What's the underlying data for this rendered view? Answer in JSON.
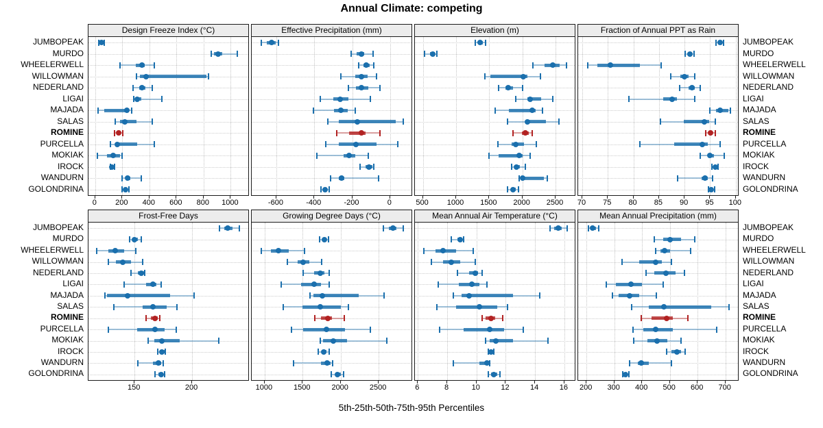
{
  "chart_data": {
    "type": "scatter",
    "subtype": "trellis-percentile-dotplot",
    "title": "Annual Climate: competing",
    "caption": "5th-25th-50th-75th-95th Percentiles",
    "percentiles": [
      5,
      25,
      50,
      75,
      95
    ],
    "legend_position": "none",
    "grid": "dotted",
    "sites": [
      "JUMBOPEAK",
      "MURDO",
      "WHEELERWELL",
      "WILLOWMAN",
      "NEDERLAND",
      "LIGAI",
      "MAJADA",
      "SALAS",
      "ROMINE",
      "PURCELLA",
      "MOKIAK",
      "IROCK",
      "WANDURN",
      "GOLONDRINA"
    ],
    "highlight_site": "ROMINE",
    "colors": {
      "default": "#1a6fad",
      "highlight": "#b22222"
    },
    "panels": [
      {
        "title": "Design Freeze Index (°C)",
        "xlim": [
          -50,
          1140
        ],
        "ticks": [
          0,
          200,
          400,
          600,
          800,
          1000
        ],
        "values": [
          [
            25,
            38,
            45,
            55,
            65
          ],
          [
            855,
            875,
            905,
            935,
            1050
          ],
          [
            185,
            300,
            345,
            365,
            435
          ],
          [
            305,
            330,
            375,
            820,
            835
          ],
          [
            280,
            325,
            345,
            370,
            420
          ],
          [
            285,
            300,
            310,
            340,
            490
          ],
          [
            20,
            65,
            235,
            250,
            270
          ],
          [
            150,
            185,
            220,
            305,
            420
          ],
          [
            140,
            158,
            172,
            188,
            205
          ],
          [
            110,
            155,
            165,
            310,
            435
          ],
          [
            15,
            85,
            130,
            185,
            200
          ],
          [
            110,
            118,
            124,
            132,
            140
          ],
          [
            200,
            222,
            238,
            260,
            340
          ],
          [
            200,
            212,
            222,
            235,
            248
          ]
        ]
      },
      {
        "title": "Effective Precipitation (mm)",
        "xlim": [
          -730,
          120
        ],
        "ticks": [
          -600,
          -400,
          -200,
          0
        ],
        "values": [
          [
            -680,
            -650,
            -625,
            -605,
            -590
          ],
          [
            -205,
            -175,
            -150,
            -135,
            -90
          ],
          [
            -165,
            -140,
            -125,
            -108,
            -85
          ],
          [
            -260,
            -185,
            -150,
            -120,
            -70
          ],
          [
            -220,
            -180,
            -150,
            -115,
            -55
          ],
          [
            -370,
            -300,
            -265,
            -220,
            -105
          ],
          [
            -405,
            -295,
            -258,
            -225,
            -185
          ],
          [
            -330,
            -270,
            -172,
            30,
            70
          ],
          [
            -280,
            -215,
            -150,
            -128,
            -55
          ],
          [
            -340,
            -270,
            -180,
            -70,
            40
          ],
          [
            -385,
            -245,
            -215,
            -185,
            -115
          ],
          [
            -160,
            -128,
            -112,
            -95,
            -85
          ],
          [
            -315,
            -272,
            -257,
            -240,
            -60
          ],
          [
            -365,
            -352,
            -343,
            -332,
            -322
          ]
        ]
      },
      {
        "title": "Elevation (m)",
        "xlim": [
          380,
          2810
        ],
        "ticks": [
          500,
          1000,
          1500,
          2000,
          2500
        ],
        "values": [
          [
            1295,
            1340,
            1365,
            1400,
            1445
          ],
          [
            520,
            610,
            648,
            680,
            715
          ],
          [
            2160,
            2330,
            2455,
            2560,
            2670
          ],
          [
            1435,
            1520,
            2015,
            2080,
            2270
          ],
          [
            1645,
            1740,
            1785,
            1860,
            2005
          ],
          [
            1905,
            2080,
            2120,
            2280,
            2460
          ],
          [
            1590,
            1800,
            2145,
            2195,
            2300
          ],
          [
            1775,
            2040,
            2075,
            2360,
            2550
          ],
          [
            1860,
            1990,
            2040,
            2095,
            2145
          ],
          [
            1630,
            1840,
            1905,
            2025,
            2210
          ],
          [
            1500,
            1640,
            1950,
            2000,
            2120
          ],
          [
            1840,
            1895,
            1915,
            1960,
            2040
          ],
          [
            1955,
            1995,
            2005,
            2320,
            2375
          ],
          [
            1775,
            1830,
            1860,
            1905,
            1945
          ]
        ]
      },
      {
        "title": "Fraction of Annual PPT as Rain",
        "xlim": [
          69.2,
          100.7
        ],
        "ticks": [
          70,
          75,
          80,
          85,
          90,
          95,
          100
        ],
        "values": [
          [
            96.2,
            96.6,
            96.9,
            97.3,
            97.6
          ],
          [
            90.1,
            90.7,
            91.0,
            91.4,
            91.8
          ],
          [
            71.1,
            73.0,
            75.5,
            81.3,
            85.4
          ],
          [
            87.3,
            89.2,
            90.0,
            90.8,
            92.0
          ],
          [
            89.0,
            90.8,
            91.4,
            92.0,
            93.0
          ],
          [
            79.1,
            85.8,
            87.5,
            88.5,
            92.0
          ],
          [
            95.0,
            96.2,
            96.9,
            98.5,
            98.9
          ],
          [
            85.3,
            89.9,
            93.8,
            94.8,
            96.0
          ],
          [
            94.1,
            94.7,
            95.1,
            95.5,
            96.0
          ],
          [
            81.2,
            87.9,
            93.5,
            94.6,
            96.9
          ],
          [
            93.0,
            94.5,
            95.0,
            95.7,
            97.8
          ],
          [
            95.4,
            95.8,
            96.0,
            96.3,
            96.6
          ],
          [
            88.6,
            93.3,
            94.0,
            94.6,
            95.5
          ],
          [
            94.7,
            95.0,
            95.2,
            95.5,
            95.9
          ]
        ]
      },
      {
        "title": "Frost-Free Days",
        "xlim": [
          110,
          250
        ],
        "ticks": [
          150,
          200
        ],
        "values": [
          [
            224,
            228,
            231,
            235,
            241
          ],
          [
            146,
            148,
            150,
            153,
            156
          ],
          [
            117,
            127,
            133,
            141,
            151
          ],
          [
            127,
            134,
            140,
            147,
            157
          ],
          [
            147,
            153,
            156,
            158,
            159
          ],
          [
            141,
            160,
            166,
            169,
            173
          ],
          [
            124,
            126,
            144,
            181,
            202
          ],
          [
            132,
            157,
            166,
            178,
            187
          ],
          [
            160,
            164,
            168,
            170,
            172
          ],
          [
            127,
            152,
            168,
            176,
            186
          ],
          [
            162,
            167,
            174,
            189,
            223
          ],
          [
            170,
            172,
            174,
            176,
            177
          ],
          [
            153,
            166,
            171,
            173,
            175
          ],
          [
            168,
            171,
            173,
            175,
            176
          ]
        ]
      },
      {
        "title": "Growing Degree Days (°C)",
        "xlim": [
          830,
          2950
        ],
        "ticks": [
          1000,
          1500,
          2000,
          2500
        ],
        "values": [
          [
            2560,
            2630,
            2690,
            2730,
            2820
          ],
          [
            1720,
            1765,
            1790,
            1815,
            1840
          ],
          [
            955,
            1080,
            1180,
            1320,
            1525
          ],
          [
            1300,
            1430,
            1505,
            1590,
            1750
          ],
          [
            1510,
            1650,
            1735,
            1790,
            1845
          ],
          [
            1215,
            1480,
            1650,
            1740,
            1845
          ],
          [
            1595,
            1640,
            1760,
            2240,
            2575
          ],
          [
            1245,
            1500,
            1735,
            2000,
            2100
          ],
          [
            1660,
            1740,
            1830,
            1890,
            2045
          ],
          [
            1350,
            1510,
            1810,
            2060,
            2390
          ],
          [
            1730,
            1770,
            1905,
            2085,
            2610
          ],
          [
            1705,
            1750,
            1780,
            1815,
            1845
          ],
          [
            1380,
            1740,
            1825,
            1865,
            1895
          ],
          [
            1875,
            1930,
            1955,
            2000,
            2040
          ]
        ]
      },
      {
        "title": "Mean Annual Air Temperature (°C)",
        "xlim": [
          5.8,
          16.8
        ],
        "ticks": [
          6,
          8,
          10,
          12,
          14,
          16
        ],
        "values": [
          [
            15.0,
            15.3,
            15.6,
            15.8,
            16.2
          ],
          [
            8.3,
            8.7,
            8.9,
            9.0,
            9.1
          ],
          [
            6.4,
            7.2,
            7.7,
            8.6,
            9.8
          ],
          [
            6.9,
            7.7,
            8.3,
            8.9,
            9.9
          ],
          [
            8.7,
            9.5,
            9.9,
            10.1,
            10.4
          ],
          [
            7.4,
            8.8,
            9.7,
            10.2,
            10.7
          ],
          [
            8.4,
            9.0,
            9.5,
            12.5,
            14.3
          ],
          [
            7.3,
            8.6,
            10.2,
            11.4,
            12.1
          ],
          [
            10.4,
            10.6,
            11.0,
            11.3,
            11.8
          ],
          [
            7.5,
            9.1,
            10.9,
            11.9,
            13.2
          ],
          [
            10.6,
            10.9,
            11.3,
            12.5,
            14.9
          ],
          [
            10.8,
            10.9,
            11.0,
            11.1,
            11.2
          ],
          [
            8.4,
            10.2,
            10.7,
            10.8,
            10.9
          ],
          [
            10.8,
            11.0,
            11.2,
            11.4,
            11.6
          ]
        ]
      },
      {
        "title": "Mean Annual Precipitation (mm)",
        "xlim": [
          170,
          750
        ],
        "ticks": [
          200,
          300,
          400,
          500,
          600,
          700
        ],
        "values": [
          [
            207,
            215,
            223,
            233,
            245
          ],
          [
            445,
            475,
            500,
            540,
            590
          ],
          [
            450,
            465,
            480,
            500,
            575
          ],
          [
            327,
            390,
            448,
            470,
            505
          ],
          [
            415,
            445,
            485,
            520,
            552
          ],
          [
            272,
            305,
            360,
            400,
            475
          ],
          [
            293,
            315,
            356,
            390,
            452
          ],
          [
            363,
            425,
            478,
            650,
            712
          ],
          [
            398,
            435,
            488,
            510,
            565
          ],
          [
            367,
            405,
            448,
            510,
            668
          ],
          [
            370,
            420,
            455,
            490,
            540
          ],
          [
            488,
            505,
            525,
            540,
            556
          ],
          [
            355,
            385,
            398,
            425,
            505
          ],
          [
            330,
            336,
            341,
            347,
            352
          ]
        ]
      }
    ]
  }
}
